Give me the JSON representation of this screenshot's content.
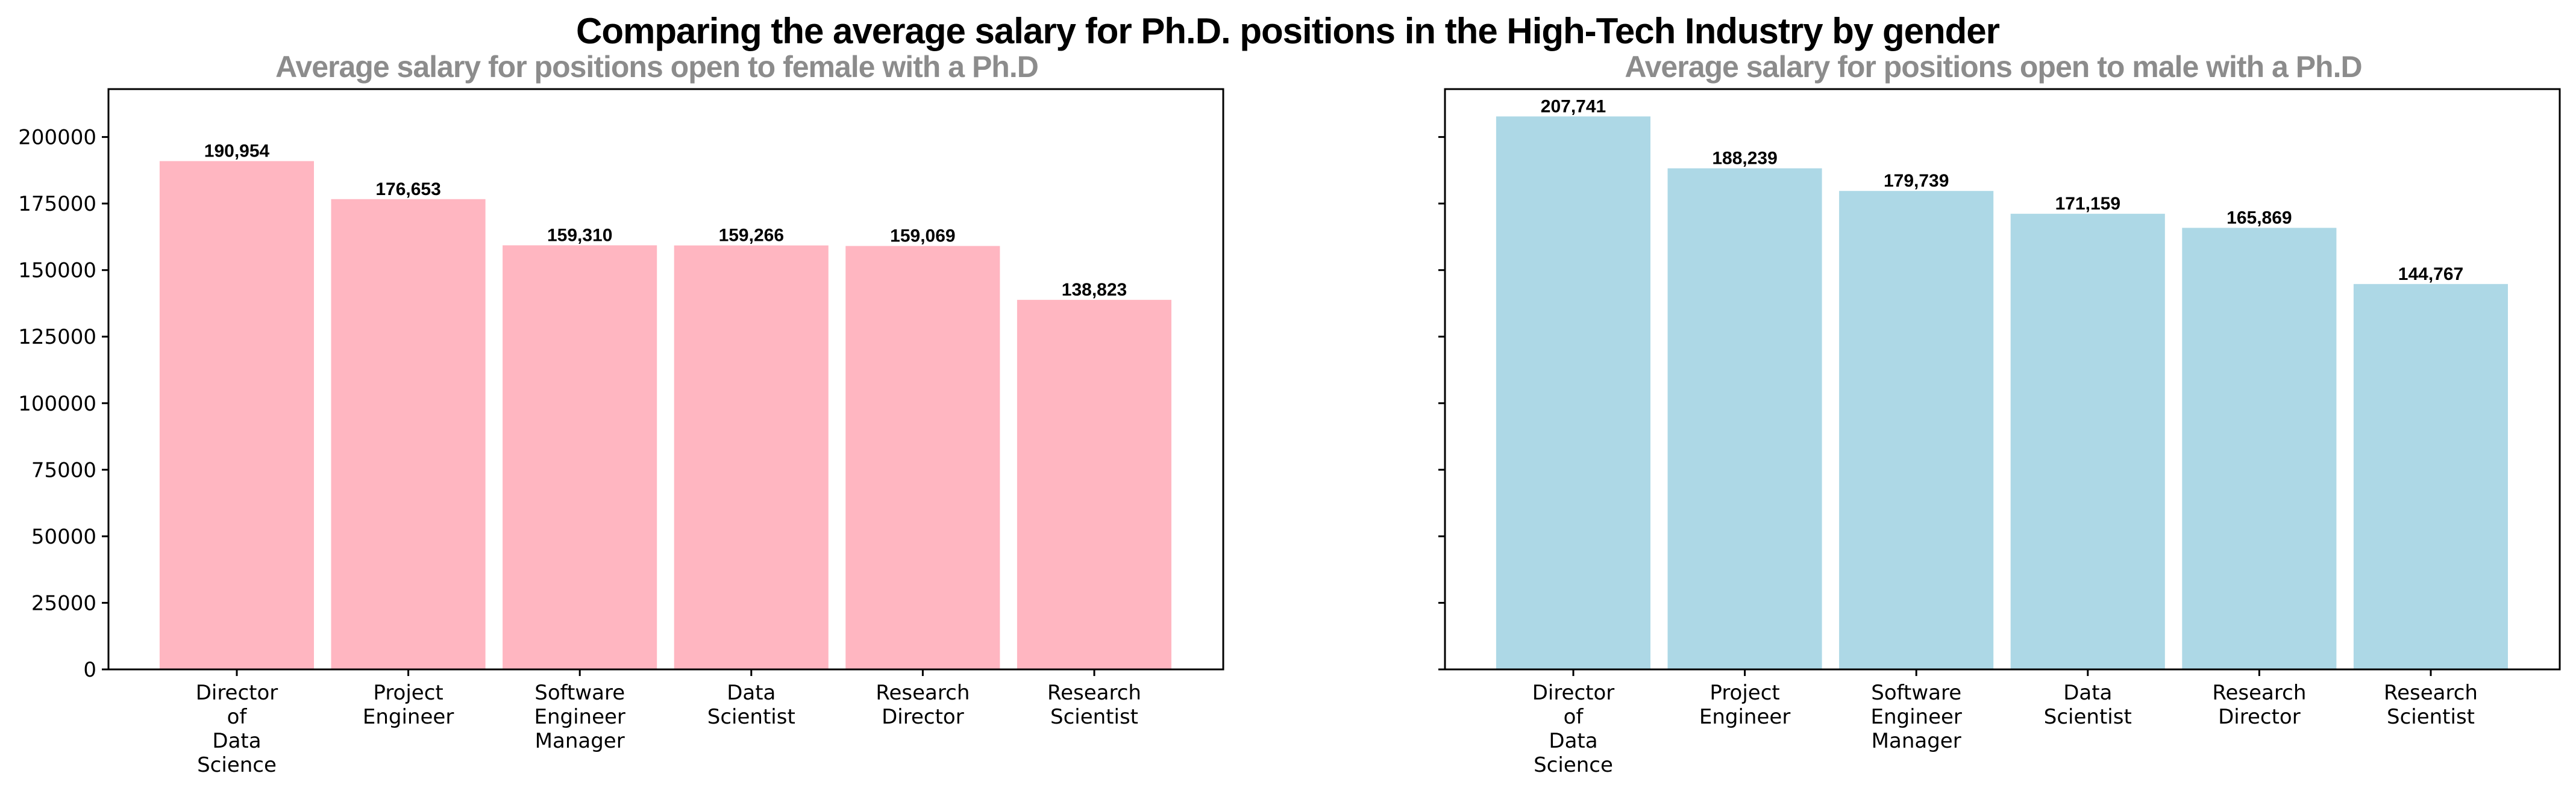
{
  "figure_title": "Comparing the average salary for Ph.D. positions in the High-Tech Industry by gender",
  "chart_data": [
    {
      "type": "bar",
      "title": "Average salary for positions open to female with a Ph.D",
      "xlabel": "",
      "ylabel": "",
      "color": "#ffb6c1",
      "categories": [
        [
          "Director",
          "of",
          "Data",
          "Science"
        ],
        [
          "Project",
          "Engineer"
        ],
        [
          "Software",
          "Engineer",
          "Manager"
        ],
        [
          "Data",
          "Scientist"
        ],
        [
          "Research",
          "Director"
        ],
        [
          "Research",
          "Scientist"
        ]
      ],
      "values": [
        190954,
        176653,
        159310,
        159266,
        159069,
        138823
      ],
      "value_labels": [
        "190,954",
        "176,653",
        "159,310",
        "159,266",
        "159,069",
        "138,823"
      ],
      "yticks": [
        0,
        25000,
        50000,
        75000,
        100000,
        125000,
        150000,
        175000,
        200000
      ],
      "ylim": [
        0,
        218000
      ],
      "grid": false
    },
    {
      "type": "bar",
      "title": "Average salary for positions open to male with a Ph.D",
      "xlabel": "",
      "ylabel": "",
      "color": "#add8e6",
      "categories": [
        [
          "Director",
          "of",
          "Data",
          "Science"
        ],
        [
          "Project",
          "Engineer"
        ],
        [
          "Software",
          "Engineer",
          "Manager"
        ],
        [
          "Data",
          "Scientist"
        ],
        [
          "Research",
          "Director"
        ],
        [
          "Research",
          "Scientist"
        ]
      ],
      "values": [
        207741,
        188239,
        179739,
        171159,
        165869,
        144767
      ],
      "value_labels": [
        "207,741",
        "188,239",
        "179,739",
        "171,159",
        "165,869",
        "144,767"
      ],
      "yticks": [
        0,
        25000,
        50000,
        75000,
        100000,
        125000,
        150000,
        175000,
        200000
      ],
      "ylim": [
        0,
        218000
      ],
      "grid": false,
      "shared_y": true
    }
  ]
}
